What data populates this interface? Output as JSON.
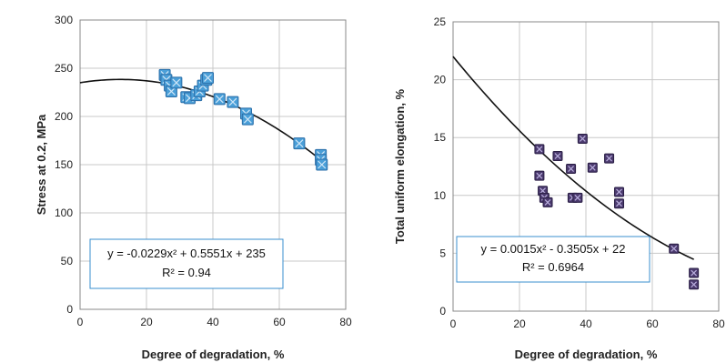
{
  "chart_data": [
    {
      "type": "scatter",
      "xlabel": "Degree of degradation, %",
      "ylabel": "Stress at 0.2, MPa",
      "xlim": [
        0,
        80
      ],
      "ylim": [
        0,
        300
      ],
      "xticks": [
        "0",
        "20",
        "40",
        "60",
        "80"
      ],
      "yticks": [
        "0",
        "50",
        "100",
        "150",
        "200",
        "250",
        "300"
      ],
      "grid": true,
      "marker_color": "#4a9fd8",
      "line_color": "#111111",
      "points": [
        [
          25.5,
          243
        ],
        [
          26,
          238
        ],
        [
          27,
          232
        ],
        [
          27.5,
          226
        ],
        [
          29,
          235
        ],
        [
          32,
          220
        ],
        [
          33,
          219
        ],
        [
          35,
          222
        ],
        [
          36,
          226
        ],
        [
          37,
          232
        ],
        [
          38,
          238
        ],
        [
          38.5,
          240
        ],
        [
          42,
          218
        ],
        [
          46,
          215
        ],
        [
          50,
          203
        ],
        [
          50.5,
          197
        ],
        [
          66,
          172
        ],
        [
          72.5,
          160
        ],
        [
          72.5,
          155
        ],
        [
          72.8,
          150
        ]
      ],
      "fit": {
        "a": -0.0229,
        "b": 0.5551,
        "c": 235,
        "from": 0,
        "to": 72.5
      },
      "equation": "y = -0.0229x² + 0.5551x + 235",
      "r2": "R² = 0.94"
    },
    {
      "type": "scatter",
      "xlabel": "Degree of degradation, %",
      "ylabel": "Total uniform elongation, %",
      "xlim": [
        0,
        80
      ],
      "ylim": [
        0,
        25
      ],
      "xticks": [
        "0",
        "20",
        "40",
        "60",
        "80"
      ],
      "yticks": [
        "0",
        "5",
        "10",
        "15",
        "20",
        "25"
      ],
      "grid": true,
      "marker_color": "#4b3a6e",
      "line_color": "#111111",
      "points": [
        [
          26,
          14
        ],
        [
          26,
          11.7
        ],
        [
          27,
          10.4
        ],
        [
          27.5,
          9.8
        ],
        [
          28.5,
          9.4
        ],
        [
          31.5,
          13.4
        ],
        [
          35.5,
          12.3
        ],
        [
          36,
          9.8
        ],
        [
          37.5,
          9.8
        ],
        [
          39,
          14.9
        ],
        [
          42,
          12.4
        ],
        [
          47,
          13.2
        ],
        [
          50,
          10.3
        ],
        [
          50,
          9.3
        ],
        [
          66.5,
          5.4
        ],
        [
          72.5,
          3.3
        ],
        [
          72.5,
          2.3
        ]
      ],
      "fit": {
        "a": 0.0015,
        "b": -0.3505,
        "c": 22,
        "from": 0,
        "to": 72.5
      },
      "equation": "y = 0.0015x² - 0.3505x + 22",
      "r2": "R² = 0.6964"
    }
  ]
}
